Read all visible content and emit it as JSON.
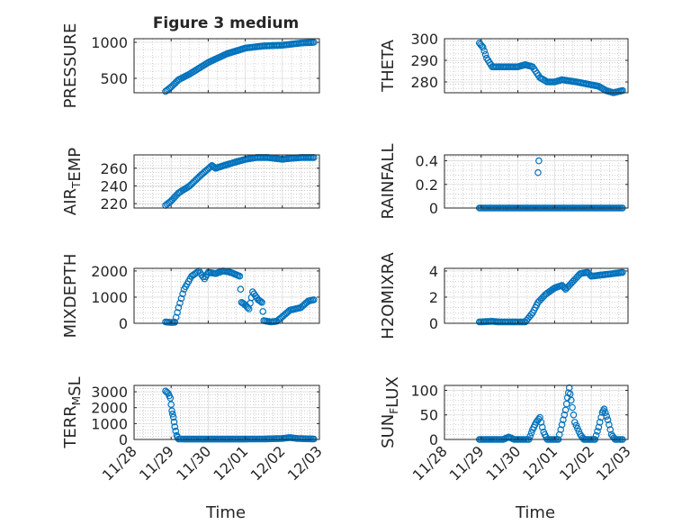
{
  "figure_title": "Figure 3 medium",
  "colors": {
    "marker": "#0072BD",
    "axis": "#262626",
    "grid": "#b0b0b0"
  },
  "x_axis": {
    "label": "Time",
    "min": 0,
    "max": 5,
    "ticks": [
      0,
      1,
      2,
      3,
      4,
      5
    ],
    "tick_labels": [
      "11/28",
      "11/29",
      "11/30",
      "12/01",
      "12/02",
      "12/03"
    ]
  },
  "chart_data": [
    {
      "type": "scatter",
      "id": "pressure",
      "ylabel": "PRESSURE",
      "ylabel_parts": [
        {
          "t": "PRESSURE"
        }
      ],
      "title": "Figure 3 medium",
      "ylim": [
        300,
        1050
      ],
      "yticks": [
        500,
        1000
      ],
      "yticklabels": [
        "500",
        "1000"
      ],
      "curve": [
        [
          0.85,
          320
        ],
        [
          1.0,
          380
        ],
        [
          1.2,
          480
        ],
        [
          1.5,
          560
        ],
        [
          2.0,
          720
        ],
        [
          2.5,
          840
        ],
        [
          3.0,
          920
        ],
        [
          3.5,
          950
        ],
        [
          4.0,
          960
        ],
        [
          4.5,
          990
        ],
        [
          4.85,
          1000
        ]
      ],
      "extra_points": []
    },
    {
      "type": "scatter",
      "id": "theta",
      "ylabel": "THETA",
      "ylabel_parts": [
        {
          "t": "THETA"
        }
      ],
      "ylim": [
        275,
        300
      ],
      "yticks": [
        280,
        290,
        300
      ],
      "yticklabels": [
        "280",
        "290",
        "300"
      ],
      "curve": [
        [
          0.95,
          298
        ],
        [
          1.05,
          296
        ],
        [
          1.15,
          291
        ],
        [
          1.3,
          287
        ],
        [
          1.6,
          287
        ],
        [
          2.0,
          287
        ],
        [
          2.2,
          288
        ],
        [
          2.4,
          287
        ],
        [
          2.6,
          282
        ],
        [
          2.8,
          280
        ],
        [
          3.0,
          280
        ],
        [
          3.2,
          281
        ],
        [
          3.6,
          280
        ],
        [
          3.9,
          279
        ],
        [
          4.2,
          278
        ],
        [
          4.4,
          276
        ],
        [
          4.6,
          275
        ],
        [
          4.85,
          276
        ]
      ],
      "extra_points": []
    },
    {
      "type": "scatter",
      "id": "air-temp",
      "ylabel": "AIR_TEMP",
      "ylabel_parts": [
        {
          "t": "AIR"
        },
        {
          "t": "T",
          "sub": true
        },
        {
          "t": "EMP"
        }
      ],
      "ylim": [
        215,
        275
      ],
      "yticks": [
        220,
        240,
        260
      ],
      "yticklabels": [
        "220",
        "240",
        "260"
      ],
      "curve": [
        [
          0.85,
          218
        ],
        [
          1.0,
          223
        ],
        [
          1.2,
          232
        ],
        [
          1.5,
          240
        ],
        [
          1.8,
          252
        ],
        [
          2.1,
          263
        ],
        [
          2.2,
          260
        ],
        [
          2.5,
          264
        ],
        [
          3.0,
          270
        ],
        [
          3.3,
          272
        ],
        [
          3.6,
          272
        ],
        [
          4.0,
          270
        ],
        [
          4.2,
          271
        ],
        [
          4.5,
          272
        ],
        [
          4.85,
          272
        ]
      ],
      "extra_points": []
    },
    {
      "type": "scatter",
      "id": "rainfall",
      "ylabel": "RAINFALL",
      "ylabel_parts": [
        {
          "t": "RAINFALL"
        }
      ],
      "ylim": [
        0,
        0.45
      ],
      "yticks": [
        0,
        0.2,
        0.4
      ],
      "yticklabels": [
        "0",
        "0.2",
        "0.4"
      ],
      "curve": [
        [
          0.95,
          0
        ],
        [
          4.85,
          0
        ]
      ],
      "extra_points": [
        [
          2.55,
          0.3
        ],
        [
          2.57,
          0.4
        ]
      ]
    },
    {
      "type": "scatter",
      "id": "mixdepth",
      "ylabel": "MIXDEPTH",
      "ylabel_parts": [
        {
          "t": "MIXDEPTH"
        }
      ],
      "ylim": [
        0,
        2100
      ],
      "yticks": [
        0,
        1000,
        2000
      ],
      "yticklabels": [
        "0",
        "1000",
        "2000"
      ],
      "curve": [
        [
          0.85,
          50
        ],
        [
          1.0,
          30
        ],
        [
          1.1,
          40
        ],
        [
          1.2,
          600
        ],
        [
          1.35,
          1300
        ],
        [
          1.55,
          1800
        ],
        [
          1.75,
          2000
        ],
        [
          1.9,
          1700
        ],
        [
          2.0,
          1950
        ],
        [
          2.2,
          1900
        ],
        [
          2.4,
          2000
        ],
        [
          2.6,
          1950
        ],
        [
          2.85,
          1800
        ],
        [
          2.9,
          800
        ],
        [
          3.0,
          700
        ],
        [
          3.1,
          550
        ],
        [
          3.2,
          1200
        ],
        [
          3.35,
          900
        ],
        [
          3.45,
          800
        ],
        [
          3.5,
          100
        ],
        [
          3.7,
          50
        ],
        [
          3.85,
          80
        ],
        [
          4.0,
          250
        ],
        [
          4.2,
          500
        ],
        [
          4.5,
          600
        ],
        [
          4.7,
          850
        ],
        [
          4.85,
          900
        ]
      ],
      "extra_points": []
    },
    {
      "type": "scatter",
      "id": "h2omixra",
      "ylabel": "H2OMIXRA",
      "ylabel_parts": [
        {
          "t": "H2OMIXRA"
        }
      ],
      "ylim": [
        0,
        4.2
      ],
      "yticks": [
        0,
        2,
        4
      ],
      "yticklabels": [
        "0",
        "2",
        "4"
      ],
      "curve": [
        [
          0.95,
          0.1
        ],
        [
          1.3,
          0.15
        ],
        [
          1.5,
          0.1
        ],
        [
          2.0,
          0.1
        ],
        [
          2.2,
          0.1
        ],
        [
          2.4,
          0.8
        ],
        [
          2.55,
          1.6
        ],
        [
          2.75,
          2.2
        ],
        [
          3.0,
          2.7
        ],
        [
          3.2,
          2.9
        ],
        [
          3.3,
          2.6
        ],
        [
          3.5,
          3.2
        ],
        [
          3.7,
          3.8
        ],
        [
          3.9,
          3.9
        ],
        [
          4.0,
          3.6
        ],
        [
          4.3,
          3.7
        ],
        [
          4.6,
          3.8
        ],
        [
          4.85,
          3.9
        ]
      ],
      "extra_points": []
    },
    {
      "type": "scatter",
      "id": "terr-msl",
      "ylabel": "TERR_MSL",
      "ylabel_parts": [
        {
          "t": "TERR"
        },
        {
          "t": "M",
          "sub": true
        },
        {
          "t": "SL"
        }
      ],
      "ylim": [
        0,
        3400
      ],
      "yticks": [
        0,
        1000,
        2000,
        3000
      ],
      "yticklabels": [
        "0",
        "1000",
        "2000",
        "3000"
      ],
      "curve": [
        [
          0.85,
          3050
        ],
        [
          0.92,
          2900
        ],
        [
          0.98,
          2600
        ],
        [
          1.02,
          1800
        ],
        [
          1.06,
          1400
        ],
        [
          1.1,
          800
        ],
        [
          1.15,
          250
        ],
        [
          1.2,
          30
        ],
        [
          1.5,
          20
        ],
        [
          2.5,
          20
        ],
        [
          3.5,
          30
        ],
        [
          4.0,
          60
        ],
        [
          4.2,
          120
        ],
        [
          4.4,
          60
        ],
        [
          4.85,
          30
        ]
      ],
      "extra_points": []
    },
    {
      "type": "scatter",
      "id": "sun-flux",
      "ylabel": "SUN_FLUX",
      "ylabel_parts": [
        {
          "t": "SUN"
        },
        {
          "t": "F",
          "sub": true
        },
        {
          "t": "LUX"
        }
      ],
      "ylim": [
        0,
        110
      ],
      "yticks": [
        0,
        50,
        100
      ],
      "yticklabels": [
        "0",
        "50",
        "100"
      ],
      "curve": [
        [
          0.95,
          0
        ],
        [
          1.6,
          0
        ],
        [
          1.75,
          5
        ],
        [
          1.9,
          0
        ],
        [
          2.3,
          0
        ],
        [
          2.4,
          20
        ],
        [
          2.5,
          35
        ],
        [
          2.6,
          45
        ],
        [
          2.7,
          15
        ],
        [
          2.8,
          0
        ],
        [
          3.1,
          0
        ],
        [
          3.2,
          30
        ],
        [
          3.3,
          60
        ],
        [
          3.35,
          85
        ],
        [
          3.4,
          105
        ],
        [
          3.45,
          80
        ],
        [
          3.55,
          35
        ],
        [
          3.7,
          10
        ],
        [
          3.8,
          0
        ],
        [
          4.1,
          0
        ],
        [
          4.2,
          25
        ],
        [
          4.3,
          55
        ],
        [
          4.35,
          62
        ],
        [
          4.45,
          40
        ],
        [
          4.55,
          10
        ],
        [
          4.65,
          0
        ],
        [
          4.85,
          0
        ]
      ],
      "extra_points": []
    }
  ]
}
